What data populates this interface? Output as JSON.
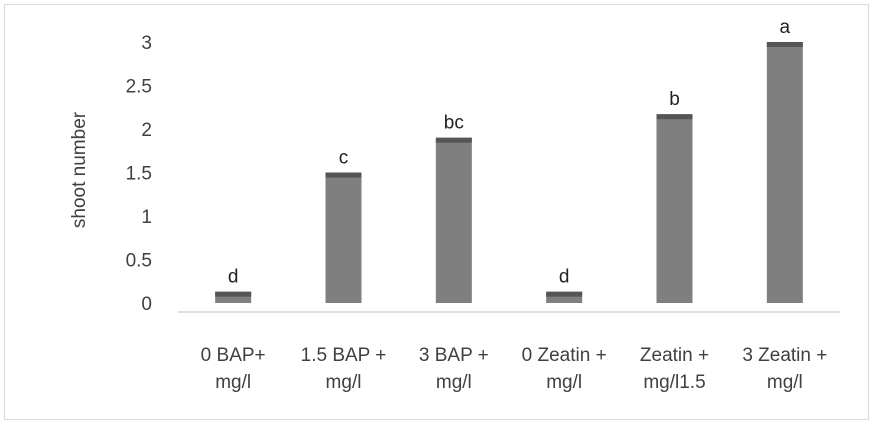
{
  "chart_data": {
    "type": "bar",
    "ylabel": "shoot number",
    "xlabel": "",
    "ylim": [
      0,
      3
    ],
    "yticks": [
      "0",
      "0.5",
      "1",
      "1.5",
      "2",
      "2.5",
      "3"
    ],
    "categories": [
      [
        "0 BAP+",
        "mg/l"
      ],
      [
        "1.5 BAP +",
        "mg/l"
      ],
      [
        "3 BAP +",
        "mg/l"
      ],
      [
        "0 Zeatin +",
        "mg/l"
      ],
      [
        "Zeatin +",
        "mg/l1.5"
      ],
      [
        "3 Zeatin +",
        "mg/l"
      ]
    ],
    "values": [
      0.13,
      1.5,
      1.9,
      0.13,
      2.17,
      3.0
    ],
    "data_labels": [
      "d",
      "c",
      "bc",
      "d",
      "b",
      "a"
    ],
    "grid": false,
    "colors": {
      "bar": "#7f7f7f",
      "bar_cap": "#555555",
      "axis": "#bfbfbf",
      "text": "#404040"
    }
  }
}
